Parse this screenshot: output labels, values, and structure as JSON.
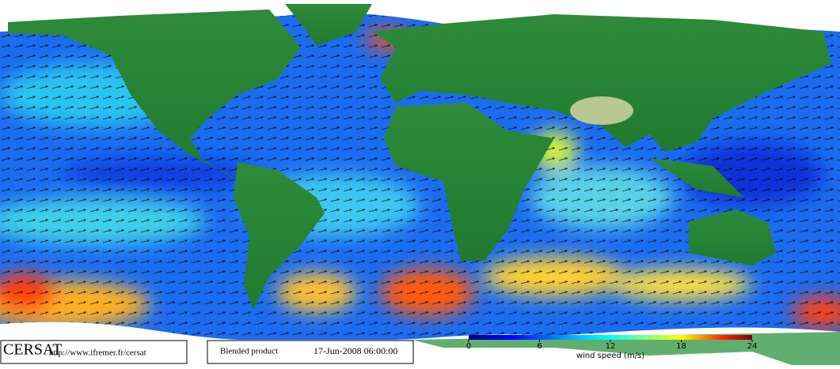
{
  "footer": {
    "logo": "CERSAT",
    "url": "http://www.ifremer.fr/cersat",
    "product": "Blended product",
    "date": "17-Jun-2008 06:00:00"
  },
  "colorbar": {
    "label": "wind speed (m/s)",
    "lim": [
      0,
      24
    ],
    "ticks": [
      0,
      6,
      12,
      18,
      24
    ]
  }
}
